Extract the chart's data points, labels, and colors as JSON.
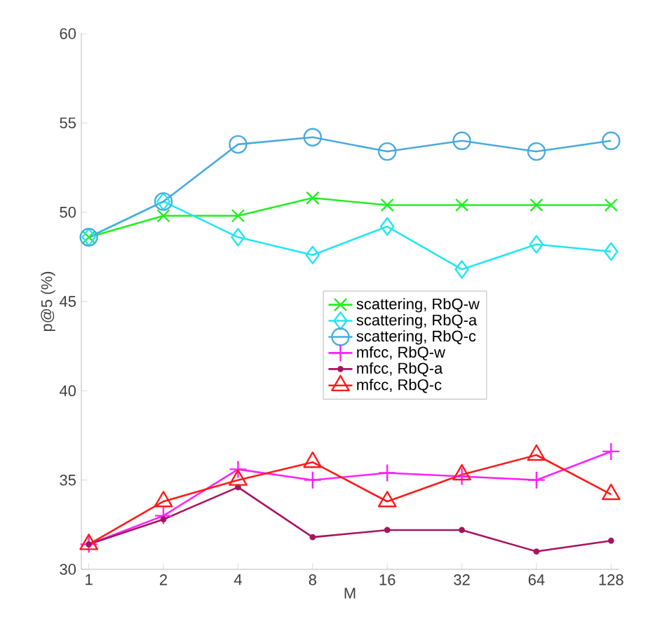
{
  "chart_data": {
    "type": "line",
    "xlabel": "M",
    "ylabel": "p@5 (%)",
    "categories": [
      "1",
      "2",
      "4",
      "8",
      "16",
      "32",
      "64",
      "128"
    ],
    "ylim": [
      30,
      60
    ],
    "yticks": [
      30,
      35,
      40,
      45,
      50,
      55,
      60
    ],
    "grid": false,
    "legend": "center",
    "series": [
      {
        "name": "scattering, RbQ-w",
        "color": "#22ee22",
        "marker": "cross",
        "values": [
          48.6,
          49.8,
          49.8,
          50.8,
          50.4,
          50.4,
          50.4,
          50.4
        ]
      },
      {
        "name": "scattering, RbQ-a",
        "color": "#22e6f0",
        "marker": "diamond",
        "values": [
          48.6,
          50.6,
          48.6,
          47.6,
          49.2,
          46.8,
          48.2,
          47.8
        ]
      },
      {
        "name": "scattering, RbQ-c",
        "color": "#4aaae0",
        "marker": "circle",
        "values": [
          48.6,
          50.6,
          53.8,
          54.2,
          53.4,
          54.0,
          53.4,
          54.0
        ]
      },
      {
        "name": "mfcc, RbQ-w",
        "color": "#ff22ff",
        "marker": "plus",
        "values": [
          31.4,
          33.0,
          35.6,
          35.0,
          35.4,
          35.2,
          35.0,
          36.6
        ]
      },
      {
        "name": "mfcc, RbQ-a",
        "color": "#a8145e",
        "marker": "point",
        "values": [
          31.4,
          32.8,
          34.6,
          31.8,
          32.2,
          32.2,
          31.0,
          31.6
        ]
      },
      {
        "name": "mfcc, RbQ-c",
        "color": "#ff1a1a",
        "marker": "triangle",
        "values": [
          31.4,
          33.8,
          35.0,
          36.0,
          33.8,
          35.3,
          36.4,
          34.2
        ]
      }
    ]
  }
}
